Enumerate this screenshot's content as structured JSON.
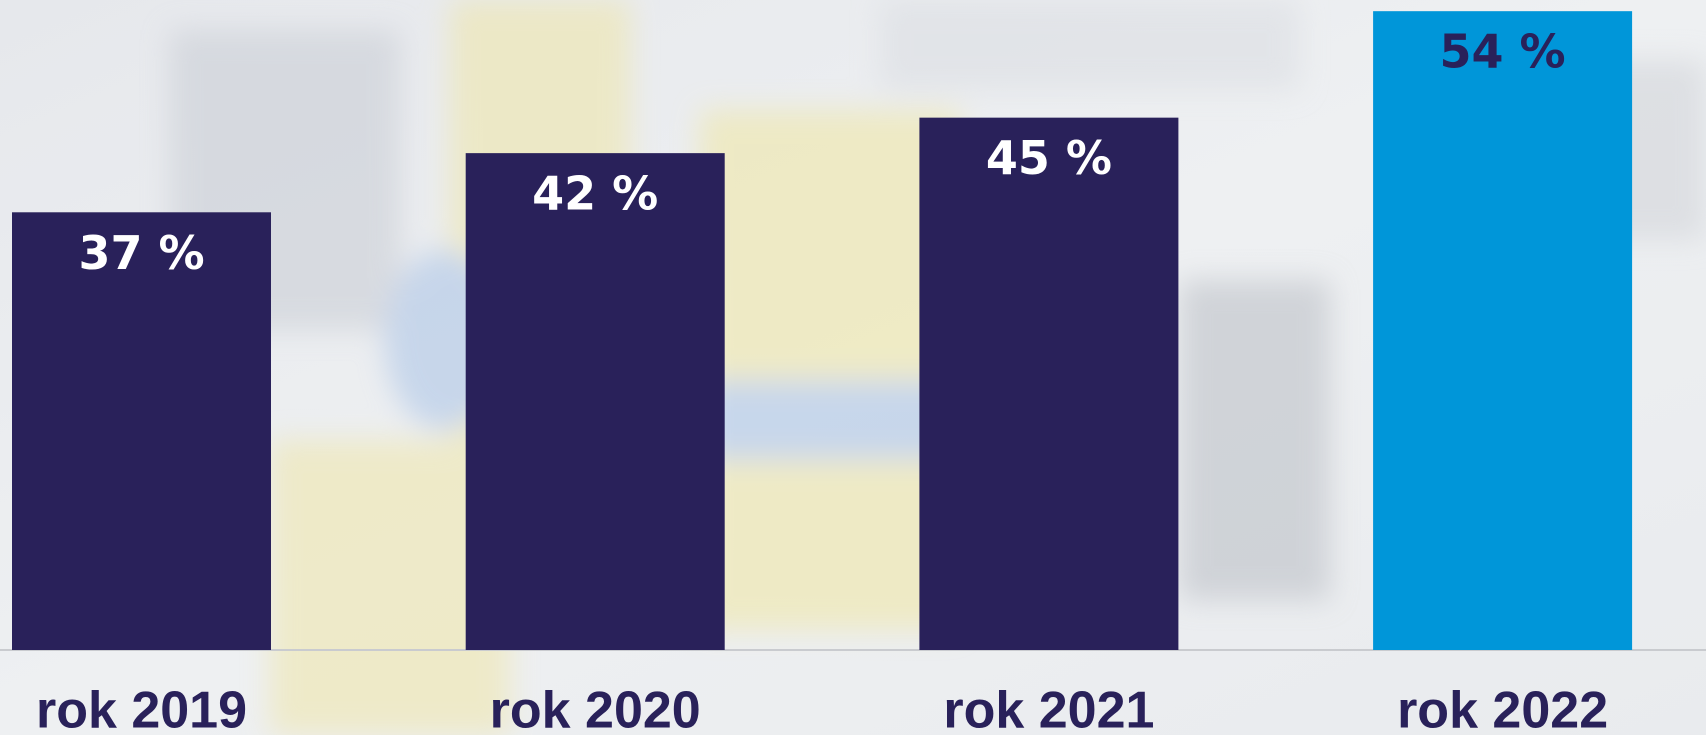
{
  "chart_data": {
    "type": "bar",
    "categories": [
      "rok 2019",
      "rok 2020",
      "rok 2021",
      "rok 2022"
    ],
    "values": [
      37,
      42,
      45,
      54
    ],
    "value_labels": [
      "37 %",
      "42 %",
      "45 %",
      "54 %"
    ],
    "colors": [
      "#29215a",
      "#29215a",
      "#29215a",
      "#0096d9"
    ],
    "label_colors": [
      "#ffffff",
      "#ffffff",
      "#ffffff",
      "#29215a"
    ],
    "category_color": "#29215a"
  }
}
